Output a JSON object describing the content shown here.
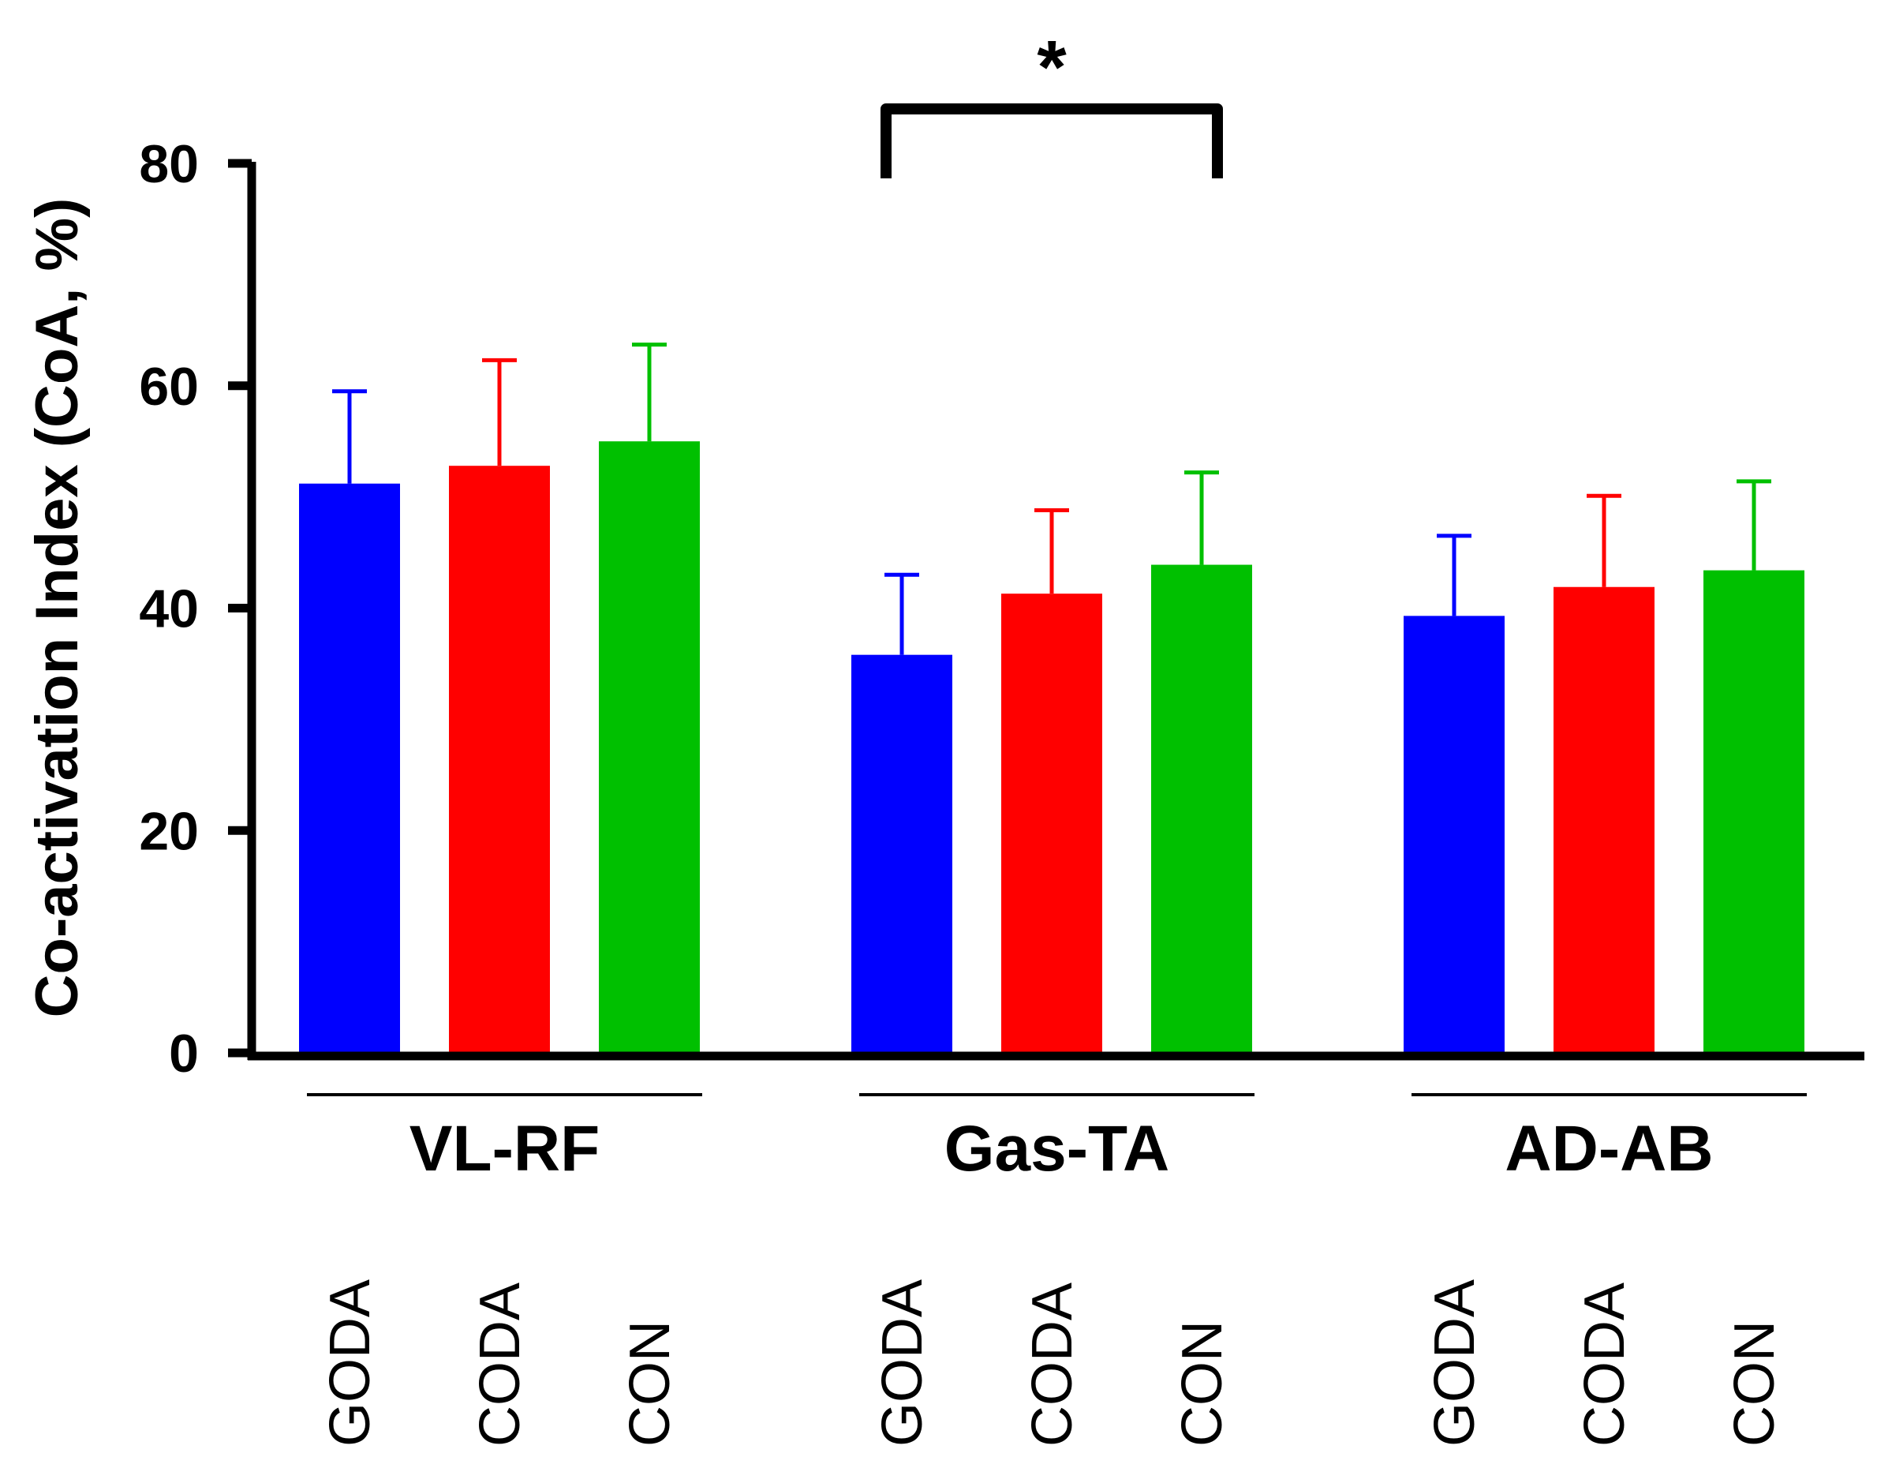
{
  "chart_data": {
    "type": "bar",
    "title": "",
    "xlabel": "",
    "ylabel": "Co-activation Index (CoA, %)",
    "ylim": [
      0,
      80
    ],
    "yticks": [
      0,
      20,
      40,
      60,
      80
    ],
    "grid": false,
    "groups": [
      {
        "name": "VL-RF",
        "bars": [
          {
            "label": "GODA",
            "value": 51.2,
            "error": 8.3,
            "color": "#0000ff"
          },
          {
            "label": "CODA",
            "value": 52.8,
            "error": 9.5,
            "color": "#ff0000"
          },
          {
            "label": "CON",
            "value": 55.0,
            "error": 8.7,
            "color": "#00c000"
          }
        ]
      },
      {
        "name": "Gas-TA",
        "bars": [
          {
            "label": "GODA",
            "value": 35.8,
            "error": 7.2,
            "color": "#0000ff"
          },
          {
            "label": "CODA",
            "value": 41.3,
            "error": 7.5,
            "color": "#ff0000"
          },
          {
            "label": "CON",
            "value": 43.9,
            "error": 8.3,
            "color": "#00c000"
          }
        ]
      },
      {
        "name": "AD-AB",
        "bars": [
          {
            "label": "GODA",
            "value": 39.3,
            "error": 7.2,
            "color": "#0000ff"
          },
          {
            "label": "CODA",
            "value": 41.9,
            "error": 8.2,
            "color": "#ff0000"
          },
          {
            "label": "CON",
            "value": 43.4,
            "error": 8.0,
            "color": "#00c000"
          }
        ]
      }
    ],
    "annotations": [
      {
        "text": "*",
        "group": "Gas-TA",
        "from": "GODA",
        "to": "CON"
      }
    ]
  }
}
